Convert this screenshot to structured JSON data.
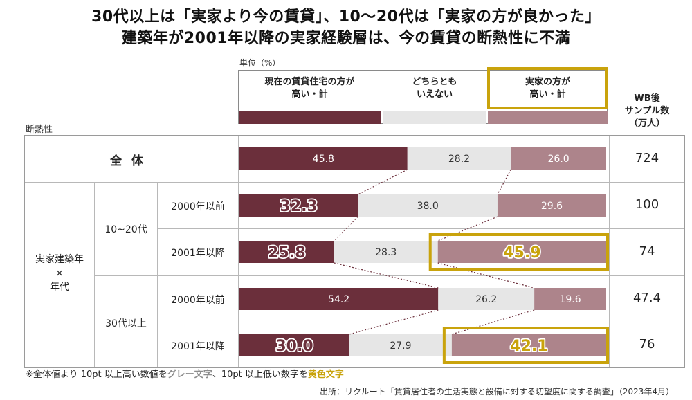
{
  "title_line1": "30代以上は「実家より今の賃貸」、10～20代は「実家の方が良かった」",
  "title_line2": "建築年が2001年以降の実家経験層は、今の賃貸の断熱性に不満",
  "unit_label": "単位（%）",
  "axis_label": "断熱性",
  "wb_header": [
    "WB後",
    "サンプル数",
    "（万人）"
  ],
  "legend": [
    {
      "lines": [
        "現在の賃貸住宅の方が",
        "高い・計"
      ],
      "color": "#6b2f3b"
    },
    {
      "lines": [
        "どちらとも",
        "いえない"
      ],
      "color": "#e6e6e6"
    },
    {
      "lines": [
        "実家の方が",
        "高い・計"
      ],
      "color": "#ad848b"
    }
  ],
  "row_labels": {
    "zentai": "全体",
    "group_main": [
      "実家建築年",
      "×",
      "年代"
    ],
    "age_young": "10~20代",
    "age_old": "30代以上",
    "period_before": "2000年以前",
    "period_after": "2001年以降"
  },
  "footnote": {
    "prefix": "※全体値より 10pt 以上高い数値を",
    "gray_text": "グレー文字",
    "middle": "、10pt 以上低い数字を",
    "gold_text": "黄色文字"
  },
  "source": "出所：リクルート「賃貸居住者の生活実態と設備に対する切望度に関する調査」（2023年4月）",
  "chart_data": {
    "type": "bar",
    "orientation": "horizontal",
    "stacked": true,
    "unit": "%",
    "categories": [
      "全体",
      "10~20代 2000年以前",
      "10~20代 2001年以降",
      "30代以上 2000年以前",
      "30代以上 2001年以降"
    ],
    "series": [
      {
        "name": "現在の賃貸住宅の方が高い・計",
        "color": "#6b2f3b",
        "values": [
          45.8,
          32.3,
          25.8,
          54.2,
          30.0
        ],
        "labels": [
          "45.8",
          "32.3",
          "25.8",
          "54.2",
          "30.0"
        ],
        "emphasis": [
          "none",
          "outline",
          "outline",
          "none",
          "outline"
        ]
      },
      {
        "name": "どちらともいえない",
        "color": "#e6e6e6",
        "values": [
          28.2,
          38.0,
          28.3,
          26.2,
          27.9
        ],
        "labels": [
          "28.2",
          "38.0",
          "28.3",
          "26.2",
          "27.9"
        ],
        "emphasis": [
          "none",
          "none",
          "none",
          "none",
          "none"
        ]
      },
      {
        "name": "実家の方が高い・計",
        "color": "#ad848b",
        "values": [
          26.0,
          29.6,
          45.9,
          19.6,
          42.1
        ],
        "labels": [
          "26.0",
          "29.6",
          "45.9",
          "19.6",
          "42.1"
        ],
        "emphasis": [
          "none",
          "none",
          "gold",
          "none",
          "gold"
        ]
      }
    ],
    "samples": [
      "724",
      "100",
      "74",
      "47.4",
      "76"
    ],
    "xlim": [
      0,
      100
    ],
    "highlight_color": "#c9a30c"
  }
}
